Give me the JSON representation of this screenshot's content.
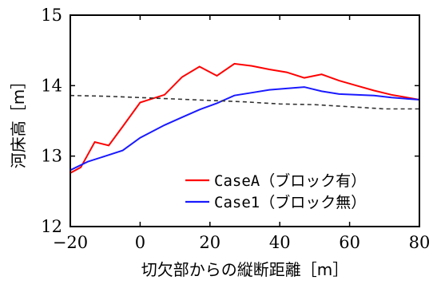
{
  "chart_data": {
    "type": "line",
    "xlabel": "切欠部からの縦断距離［m］",
    "ylabel": "河床高［m］",
    "xlim": [
      -20,
      80
    ],
    "ylim": [
      12,
      15
    ],
    "xticks": [
      -20,
      0,
      20,
      40,
      60,
      80
    ],
    "yticks": [
      12,
      13,
      14,
      15
    ],
    "xtick_labels": [
      "−20",
      "0",
      "20",
      "40",
      "60",
      "80"
    ],
    "ytick_labels": [
      "12",
      "13",
      "14",
      "15"
    ],
    "legend_position": "bottom-right",
    "grid": false,
    "series": [
      {
        "name": "CaseA（ブロック有）",
        "color": "#ff0000",
        "style": "solid",
        "points": [
          [
            -20,
            12.76
          ],
          [
            -17,
            12.84
          ],
          [
            -13,
            13.2
          ],
          [
            -9,
            13.15
          ],
          [
            -5,
            13.42
          ],
          [
            0,
            13.76
          ],
          [
            7,
            13.87
          ],
          [
            12,
            14.12
          ],
          [
            17,
            14.27
          ],
          [
            22,
            14.14
          ],
          [
            27,
            14.31
          ],
          [
            32,
            14.28
          ],
          [
            37,
            14.23
          ],
          [
            42,
            14.19
          ],
          [
            47,
            14.11
          ],
          [
            52,
            14.16
          ],
          [
            57,
            14.07
          ],
          [
            62,
            14.0
          ],
          [
            67,
            13.93
          ],
          [
            72,
            13.87
          ],
          [
            80,
            13.8
          ]
        ]
      },
      {
        "name": "Case1（ブロック無）",
        "color": "#1a1aff",
        "style": "solid",
        "points": [
          [
            -20,
            12.8
          ],
          [
            -15,
            12.92
          ],
          [
            -10,
            13.0
          ],
          [
            -5,
            13.08
          ],
          [
            0,
            13.26
          ],
          [
            7,
            13.44
          ],
          [
            12,
            13.55
          ],
          [
            17,
            13.66
          ],
          [
            22,
            13.75
          ],
          [
            27,
            13.86
          ],
          [
            32,
            13.9
          ],
          [
            37,
            13.94
          ],
          [
            42,
            13.96
          ],
          [
            47,
            13.98
          ],
          [
            52,
            13.92
          ],
          [
            57,
            13.88
          ],
          [
            67,
            13.86
          ],
          [
            72,
            13.83
          ],
          [
            80,
            13.8
          ]
        ]
      },
      {
        "color": "#333333",
        "style": "dashed",
        "points": [
          [
            -20,
            13.86
          ],
          [
            -10,
            13.85
          ],
          [
            0,
            13.83
          ],
          [
            10,
            13.81
          ],
          [
            20,
            13.79
          ],
          [
            30,
            13.77
          ],
          [
            40,
            13.74
          ],
          [
            50,
            13.73
          ],
          [
            60,
            13.7
          ],
          [
            70,
            13.67
          ],
          [
            80,
            13.67
          ]
        ]
      }
    ]
  }
}
